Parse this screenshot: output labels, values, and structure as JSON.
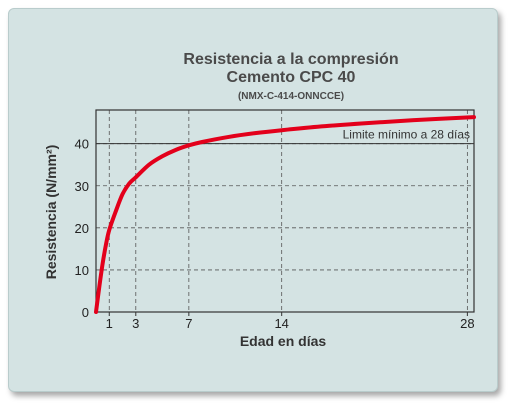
{
  "chart_data": {
    "type": "line",
    "title": "Resistencia a la compresión",
    "subtitle": "Cemento CPC 40",
    "note": "(NMX-C-414-ONNCCE)",
    "xlabel": "Edad en días",
    "ylabel": "Resistencia (N/mm²)",
    "xlim": [
      0,
      28.5
    ],
    "ylim": [
      0,
      48
    ],
    "x_ticks": [
      1,
      3,
      7,
      14,
      28
    ],
    "y_ticks": [
      0,
      10,
      20,
      30,
      40
    ],
    "grid": "dashed",
    "reference_line": {
      "y": 40,
      "label": "Limite mínimo a 28 días"
    },
    "series": [
      {
        "color": "#e3001b",
        "x": [
          0,
          0.25,
          0.5,
          0.75,
          1,
          1.5,
          2,
          2.5,
          3,
          4,
          5,
          6,
          7,
          8,
          10,
          12,
          14,
          17,
          20,
          24,
          28.5
        ],
        "y": [
          0,
          6,
          11.5,
          16,
          19.5,
          24,
          28,
          30.5,
          32,
          35,
          37,
          38.5,
          39.6,
          40.4,
          41.6,
          42.5,
          43.2,
          44.1,
          44.8,
          45.6,
          46.3
        ]
      }
    ]
  }
}
